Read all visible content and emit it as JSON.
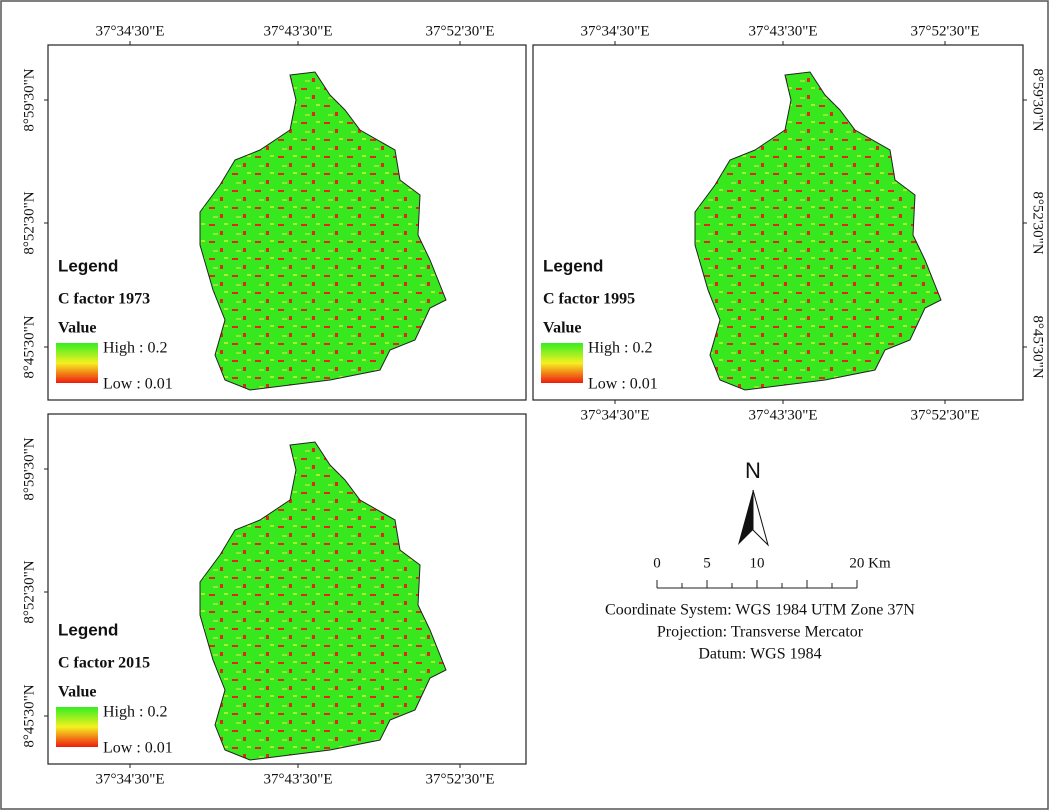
{
  "panels": [
    {
      "x_labels_top": [
        "37°34'30\"E",
        "37°43'30\"E",
        "37°52'30\"E"
      ],
      "y_labels": [
        "8°59'30\"N",
        "8°52'30\"N",
        "8°45'30\"N"
      ],
      "legend": {
        "title": "Legend",
        "layer": "C factor 1973",
        "field": "Value",
        "high": "High : 0.2",
        "low": "Low : 0.01"
      }
    },
    {
      "x_labels_top": [
        "37°34'30\"E",
        "37°43'30\"E",
        "37°52'30\"E"
      ],
      "x_labels_bottom": [
        "37°34'30\"E",
        "37°43'30\"E",
        "37°52'30\"E"
      ],
      "y_labels": [
        "8°59'30\"N",
        "8°52'30\"N",
        "8°45'30\"N"
      ],
      "legend": {
        "title": "Legend",
        "layer": "C factor 1995",
        "field": "Value",
        "high": "High : 0.2",
        "low": "Low : 0.01"
      }
    },
    {
      "x_labels_bottom": [
        "37°34'30\"E",
        "37°43'30\"E",
        "37°52'30\"E"
      ],
      "y_labels": [
        "8°59'30\"N",
        "8°52'30\"N",
        "8°45'30\"N"
      ],
      "legend": {
        "title": "Legend",
        "layer": "C factor 2015",
        "field": "Value",
        "high": "High : 0.2",
        "low": "Low : 0.01"
      }
    }
  ],
  "north": "N",
  "scale_bar": {
    "labels": [
      "0",
      "5",
      "10",
      "20 Km"
    ]
  },
  "coordinate_info": [
    "Coordinate System: WGS 1984 UTM Zone 37N",
    "Projection: Transverse Mercator",
    "Datum: WGS 1984"
  ]
}
